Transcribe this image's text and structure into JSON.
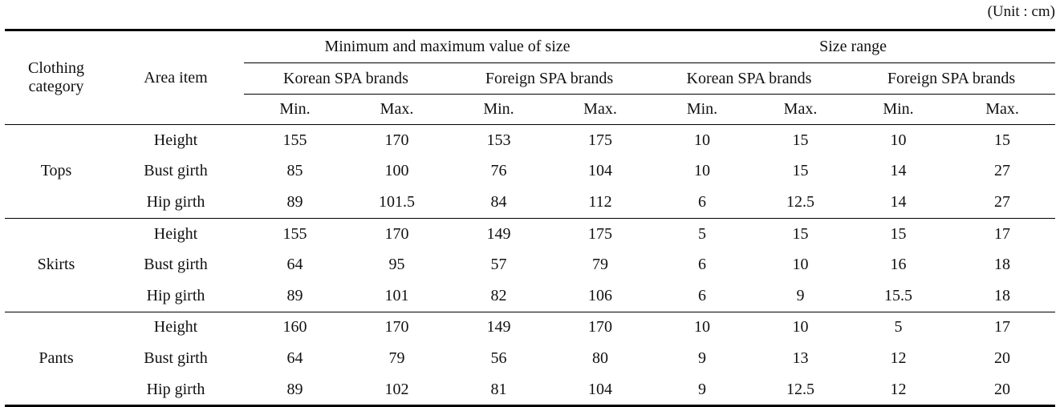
{
  "unit_label": "(Unit : cm)",
  "headers": {
    "clothing_category": "Clothing category",
    "area_item": "Area item",
    "min_max_group": "Minimum and maximum value of size",
    "size_range_group": "Size range",
    "korean": "Korean SPA brands",
    "foreign": "Foreign SPA brands",
    "min": "Min.",
    "max": "Max."
  },
  "groups": [
    {
      "category": "Tops",
      "rows": [
        {
          "item": "Height",
          "vals": [
            "155",
            "170",
            "153",
            "175",
            "10",
            "15",
            "10",
            "15"
          ]
        },
        {
          "item": "Bust girth",
          "vals": [
            "85",
            "100",
            "76",
            "104",
            "10",
            "15",
            "14",
            "27"
          ]
        },
        {
          "item": "Hip girth",
          "vals": [
            "89",
            "101.5",
            "84",
            "112",
            "6",
            "12.5",
            "14",
            "27"
          ]
        }
      ]
    },
    {
      "category": "Skirts",
      "rows": [
        {
          "item": "Height",
          "vals": [
            "155",
            "170",
            "149",
            "175",
            "5",
            "15",
            "15",
            "17"
          ]
        },
        {
          "item": "Bust girth",
          "vals": [
            "64",
            "95",
            "57",
            "79",
            "6",
            "10",
            "16",
            "18"
          ]
        },
        {
          "item": "Hip girth",
          "vals": [
            "89",
            "101",
            "82",
            "106",
            "6",
            "9",
            "15.5",
            "18"
          ]
        }
      ]
    },
    {
      "category": "Pants",
      "rows": [
        {
          "item": "Height",
          "vals": [
            "160",
            "170",
            "149",
            "170",
            "10",
            "10",
            "5",
            "17"
          ]
        },
        {
          "item": "Bust girth",
          "vals": [
            "64",
            "79",
            "56",
            "80",
            "9",
            "13",
            "12",
            "20"
          ]
        },
        {
          "item": "Hip girth",
          "vals": [
            "89",
            "102",
            "81",
            "104",
            "9",
            "12.5",
            "12",
            "20"
          ]
        }
      ]
    }
  ]
}
